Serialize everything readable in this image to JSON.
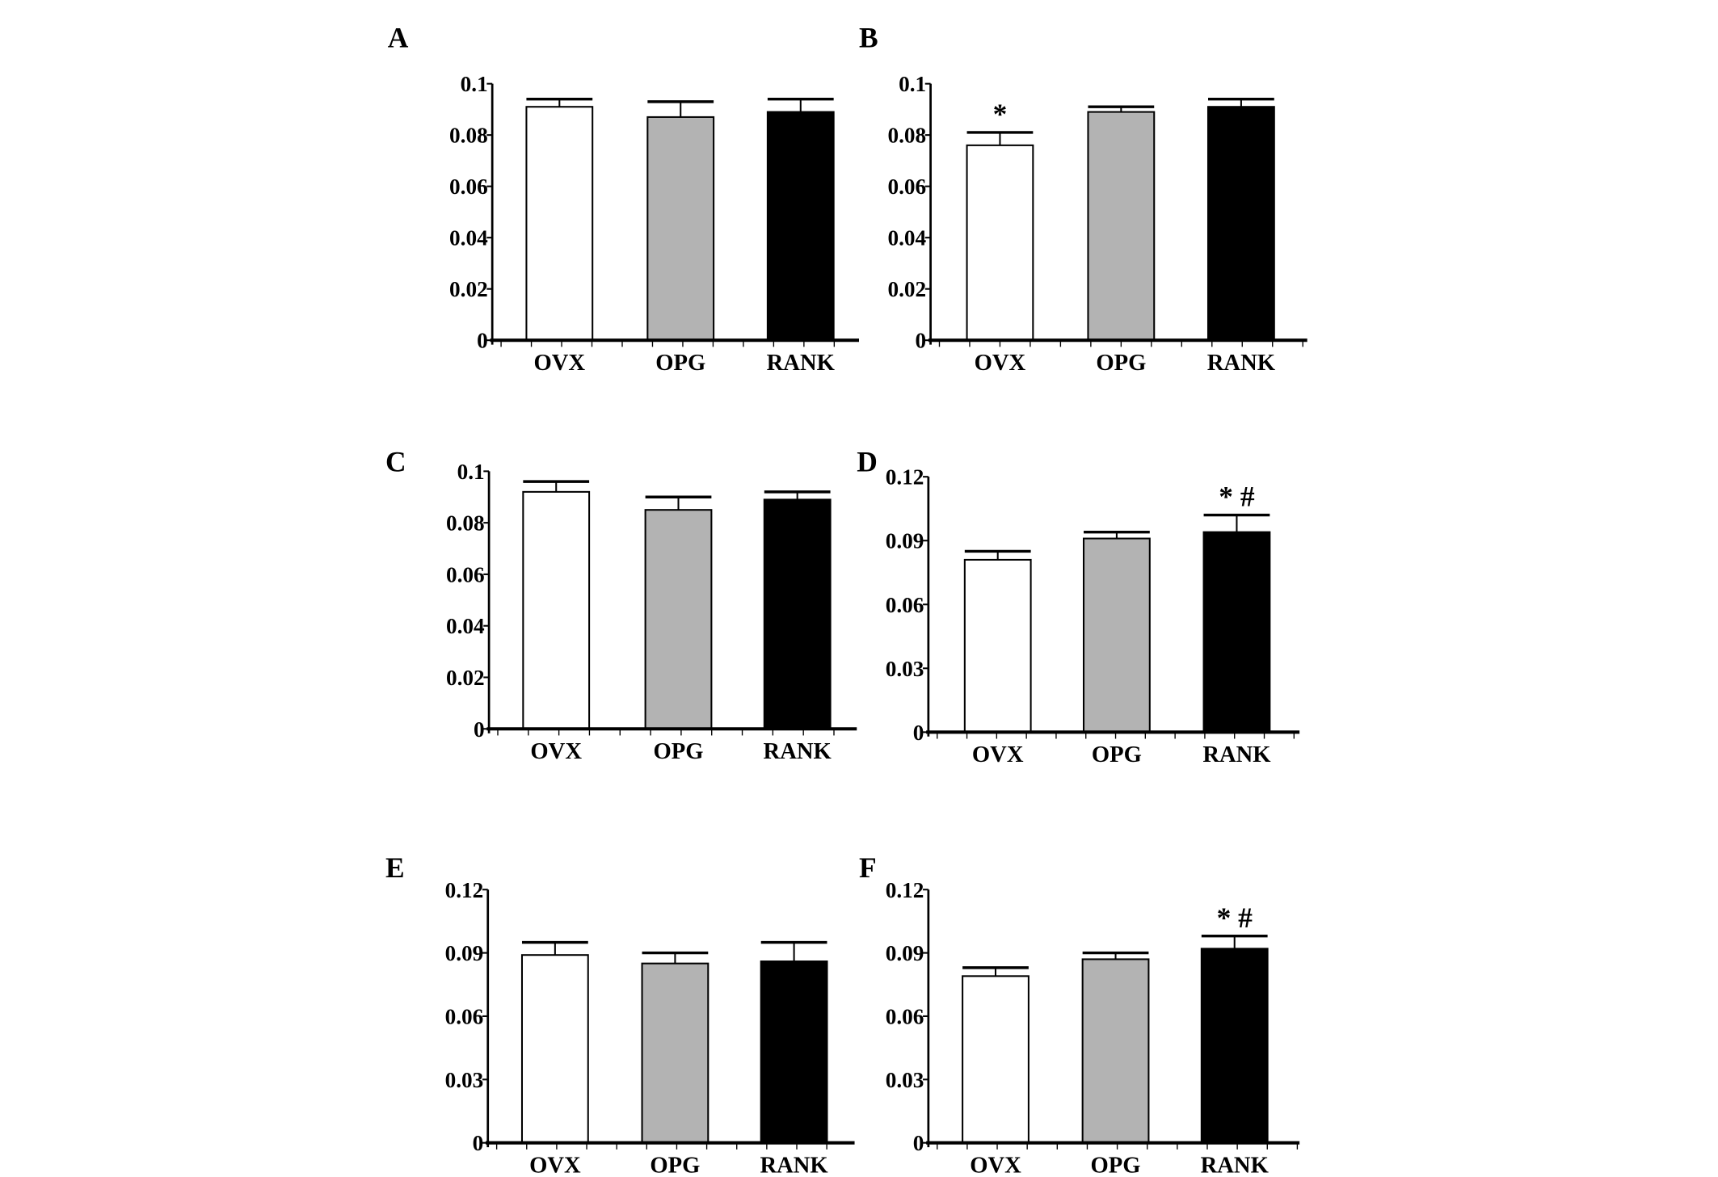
{
  "colors": {
    "OVX": "#ffffff",
    "OPG": "#b3b3b3",
    "RANK": "#000000"
  },
  "chart_data": [
    {
      "panel": "A",
      "type": "bar",
      "categories": [
        "OVX",
        "OPG",
        "RANK"
      ],
      "values": [
        0.091,
        0.087,
        0.089
      ],
      "error_upper": [
        0.094,
        0.093,
        0.094
      ],
      "ylim": [
        0,
        0.1
      ],
      "yticks": [
        "0",
        "0.02",
        "0.04",
        "0.06",
        "0.08",
        "0.1"
      ],
      "annotations": [
        "",
        "",
        ""
      ]
    },
    {
      "panel": "B",
      "type": "bar",
      "categories": [
        "OVX",
        "OPG",
        "RANK"
      ],
      "values": [
        0.076,
        0.089,
        0.091
      ],
      "error_upper": [
        0.081,
        0.091,
        0.094
      ],
      "ylim": [
        0,
        0.1
      ],
      "yticks": [
        "0",
        "0.02",
        "0.04",
        "0.06",
        "0.08",
        "0.1"
      ],
      "annotations": [
        "*",
        "",
        ""
      ]
    },
    {
      "panel": "C",
      "type": "bar",
      "categories": [
        "OVX",
        "OPG",
        "RANK"
      ],
      "values": [
        0.092,
        0.085,
        0.089
      ],
      "error_upper": [
        0.096,
        0.09,
        0.092
      ],
      "ylim": [
        0,
        0.1
      ],
      "yticks": [
        "0",
        "0.02",
        "0.04",
        "0.06",
        "0.08",
        "0.1"
      ],
      "annotations": [
        "",
        "",
        ""
      ]
    },
    {
      "panel": "D",
      "type": "bar",
      "categories": [
        "OVX",
        "OPG",
        "RANK"
      ],
      "values": [
        0.081,
        0.091,
        0.094
      ],
      "error_upper": [
        0.085,
        0.094,
        0.102
      ],
      "ylim": [
        0,
        0.12
      ],
      "yticks": [
        "0",
        "0.03",
        "0.06",
        "0.09",
        "0.12"
      ],
      "annotations": [
        "",
        "",
        "* #"
      ]
    },
    {
      "panel": "E",
      "type": "bar",
      "categories": [
        "OVX",
        "OPG",
        "RANK"
      ],
      "values": [
        0.089,
        0.085,
        0.086
      ],
      "error_upper": [
        0.095,
        0.09,
        0.095
      ],
      "ylim": [
        0,
        0.12
      ],
      "yticks": [
        "0",
        "0.03",
        "0.06",
        "0.09",
        "0.12"
      ],
      "annotations": [
        "",
        "",
        ""
      ]
    },
    {
      "panel": "F",
      "type": "bar",
      "categories": [
        "OVX",
        "OPG",
        "RANK"
      ],
      "values": [
        0.079,
        0.087,
        0.092
      ],
      "error_upper": [
        0.083,
        0.09,
        0.098
      ],
      "ylim": [
        0,
        0.12
      ],
      "yticks": [
        "0",
        "0.03",
        "0.06",
        "0.09",
        "0.12"
      ],
      "annotations": [
        "",
        "",
        "* #"
      ]
    }
  ]
}
